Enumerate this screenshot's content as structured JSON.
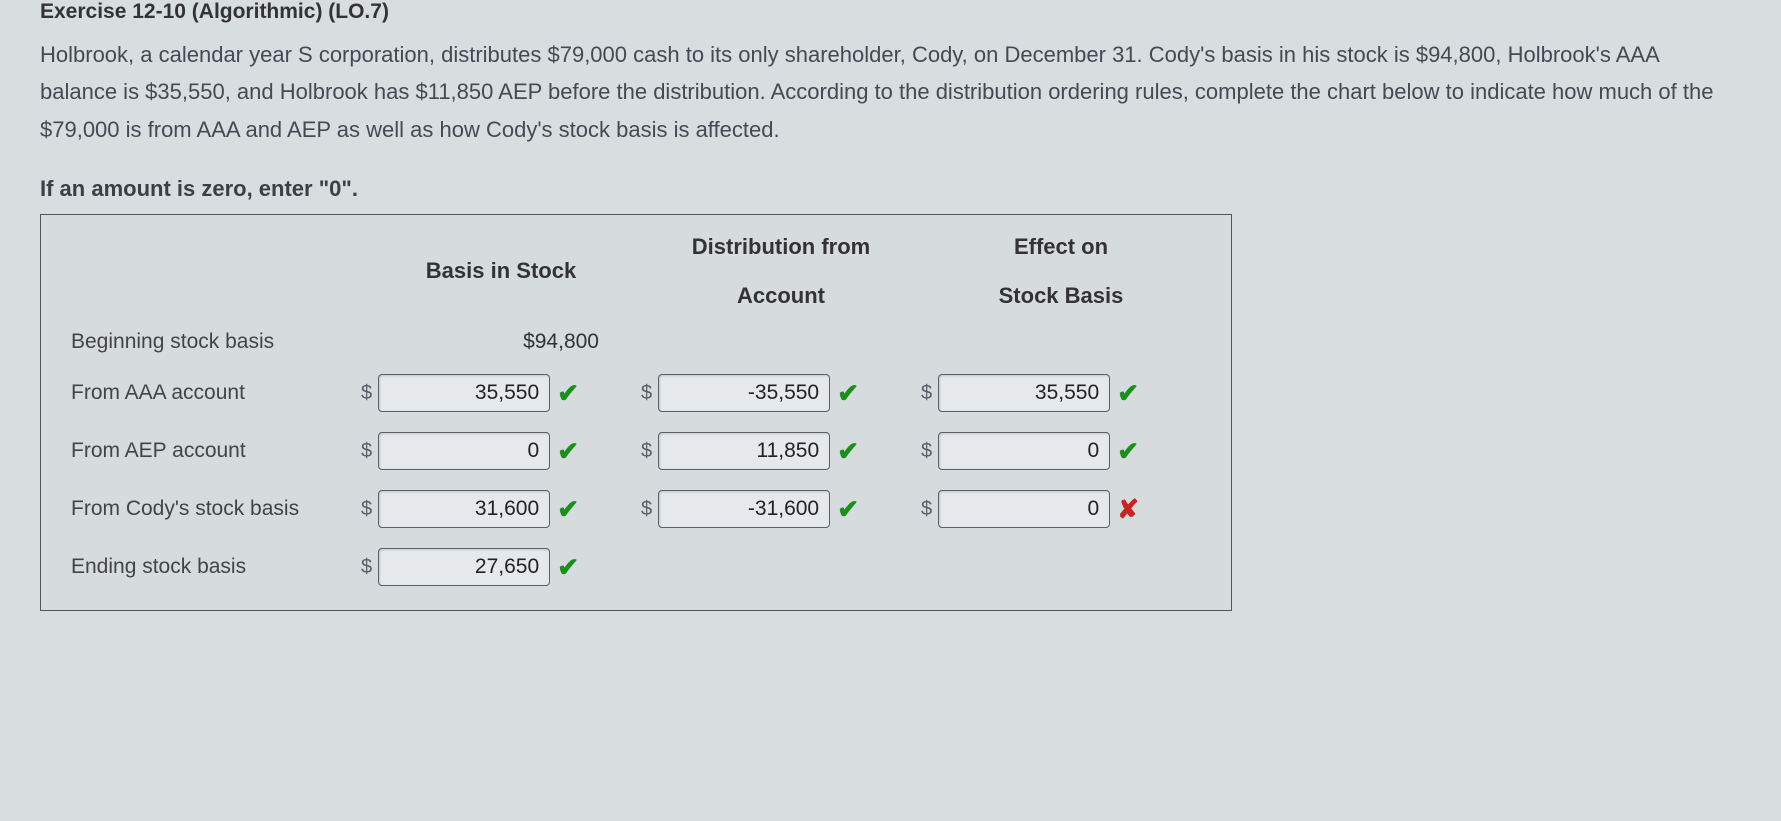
{
  "exercise_header": "Exercise 12-10 (Algorithmic) (LO.7)",
  "problem_text": "Holbrook, a calendar year S corporation, distributes $79,000 cash to its only shareholder, Cody, on December 31. Cody's basis in his stock is $94,800, Holbrook's AAA balance is $35,550, and Holbrook has $11,850 AEP before the distribution. According to the distribution ordering rules, complete the chart below to indicate how much of the $79,000 is from AAA and AEP as well as how Cody's stock basis is affected.",
  "instruction": "If an amount is zero, enter \"0\".",
  "headers": {
    "col1": "Basis in Stock",
    "col2_line1": "Distribution from",
    "col2_line2": "Account",
    "col3_line1": "Effect on",
    "col3_line2": "Stock Basis"
  },
  "rows": {
    "beginning": {
      "label": "Beginning stock basis",
      "basis_static": "$94,800"
    },
    "aaa": {
      "label": "From AAA account",
      "basis": "35,550",
      "basis_mark": "✔",
      "dist": "-35,550",
      "dist_mark": "✔",
      "effect": "35,550",
      "effect_mark": "✔"
    },
    "aep": {
      "label": "From AEP account",
      "basis": "0",
      "basis_mark": "✔",
      "dist": "11,850",
      "dist_mark": "✔",
      "effect": "0",
      "effect_mark": "✔"
    },
    "stockbasis": {
      "label": "From Cody's stock basis",
      "basis": "31,600",
      "basis_mark": "✔",
      "dist": "-31,600",
      "dist_mark": "✔",
      "effect": "0",
      "effect_mark": "✘"
    },
    "ending": {
      "label": "Ending stock basis",
      "basis": "27,650",
      "basis_mark": "✔"
    }
  },
  "colors": {
    "background": "#d8dde0",
    "text": "#3a3f44",
    "border": "#555555",
    "input_bg": "#e6e9eb",
    "check": "#1a8f1a",
    "cross": "#c22222"
  }
}
